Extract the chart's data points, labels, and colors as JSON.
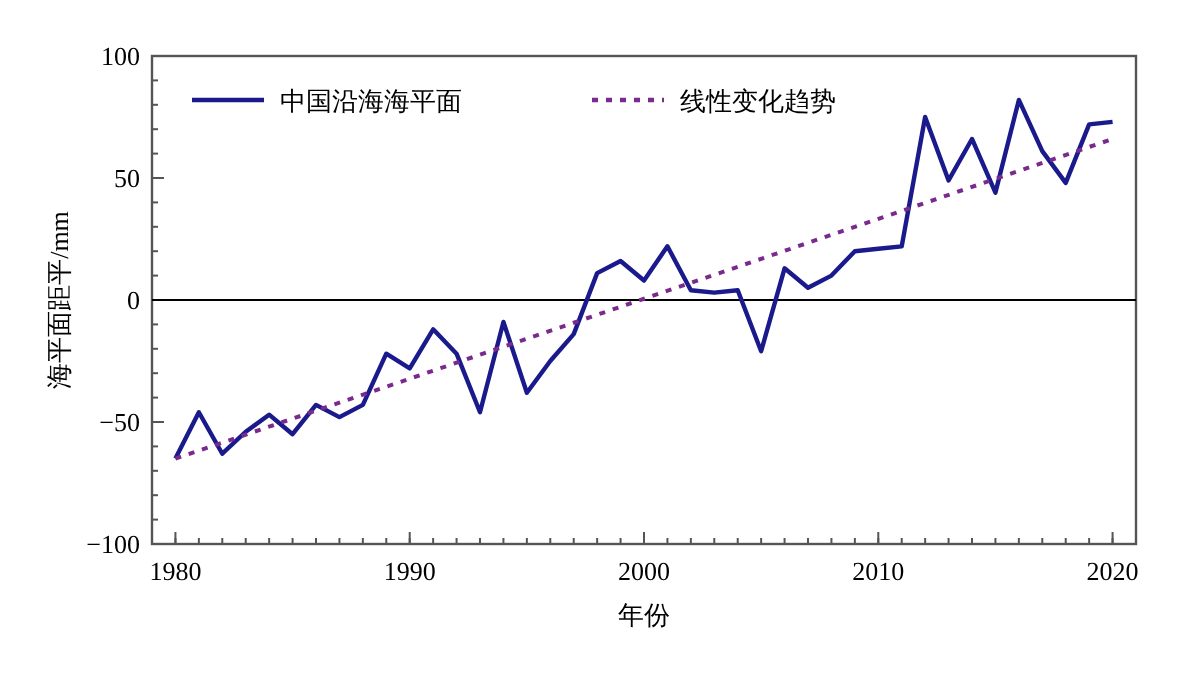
{
  "chart_data": {
    "type": "line",
    "xlabel": "年份",
    "ylabel": "海平面距平/mm",
    "xlim": [
      1979,
      2021
    ],
    "xticks": [
      1980,
      1990,
      2000,
      2010,
      2020
    ],
    "ylim": [
      -100,
      100
    ],
    "yticks": [
      -100,
      -50,
      0,
      50,
      100
    ],
    "legend": "top",
    "grid": false,
    "ref_lines": [
      {
        "axis": "y",
        "value": 0,
        "color": "#000000"
      }
    ],
    "series": [
      {
        "name": "中国沿海海平面",
        "color": "#1a1a8c",
        "line_style": "solid",
        "x": [
          1980,
          1981,
          1982,
          1983,
          1984,
          1985,
          1986,
          1987,
          1988,
          1989,
          1990,
          1991,
          1992,
          1993,
          1994,
          1995,
          1996,
          1997,
          1998,
          1999,
          2000,
          2001,
          2002,
          2003,
          2004,
          2005,
          2006,
          2007,
          2008,
          2009,
          2010,
          2011,
          2012,
          2013,
          2014,
          2015,
          2016,
          2017,
          2018,
          2019,
          2020
        ],
        "values": [
          -65,
          -46,
          -63,
          -54,
          -47,
          -55,
          -43,
          -48,
          -43,
          -22,
          -28,
          -12,
          -22,
          -46,
          -9,
          -38,
          -25,
          -14,
          11,
          16,
          8,
          22,
          4,
          3,
          4,
          -21,
          13,
          5,
          10,
          20,
          21,
          22,
          75,
          49,
          66,
          44,
          82,
          61,
          48,
          72,
          73
        ]
      },
      {
        "name": "线性变化趋势",
        "color": "#7a2a8c",
        "line_style": "dotted",
        "x": [
          1980,
          2020
        ],
        "values": [
          -65,
          66
        ]
      }
    ]
  }
}
